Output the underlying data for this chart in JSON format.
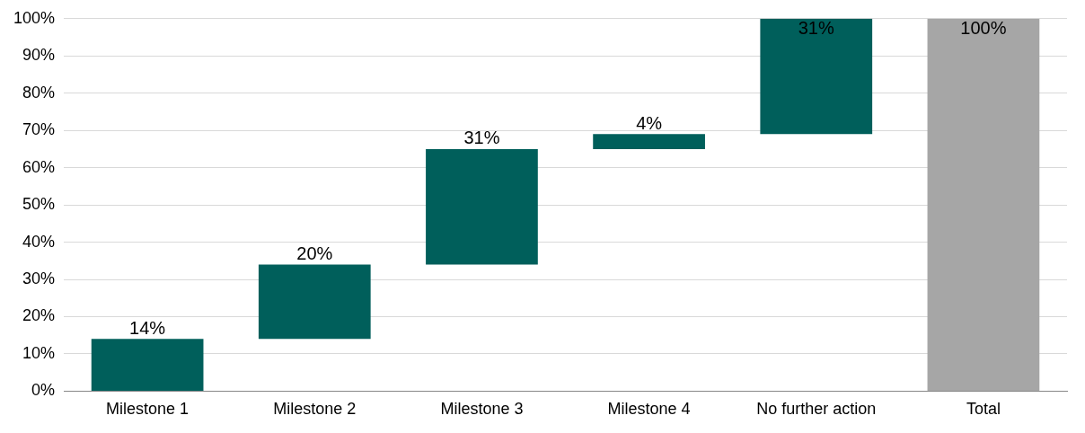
{
  "chart_data": {
    "type": "bar",
    "categories": [
      "Milestone 1",
      "Milestone 2",
      "Milestone 3",
      "Milestone 4",
      "No further action",
      "Total"
    ],
    "values": [
      14,
      20,
      31,
      4,
      31,
      100
    ],
    "base": [
      0,
      14,
      34,
      65,
      69,
      0
    ],
    "colors": [
      "#005f5b",
      "#005f5b",
      "#005f5b",
      "#005f5b",
      "#005f5b",
      "#a6a6a6"
    ],
    "value_labels": [
      "14%",
      "20%",
      "31%",
      "4%",
      "31%",
      "100%"
    ],
    "ylim": [
      0,
      100
    ],
    "yticks": [
      {
        "value": 0,
        "label": "0%"
      },
      {
        "value": 10,
        "label": "10%"
      },
      {
        "value": 20,
        "label": "20%"
      },
      {
        "value": 30,
        "label": "30%"
      },
      {
        "value": 40,
        "label": "40%"
      },
      {
        "value": 50,
        "label": "50%"
      },
      {
        "value": 60,
        "label": "60%"
      },
      {
        "value": 70,
        "label": "70%"
      },
      {
        "value": 80,
        "label": "80%"
      },
      {
        "value": 90,
        "label": "90%"
      },
      {
        "value": 100,
        "label": "100%"
      }
    ],
    "grid": "y",
    "legend": false
  }
}
